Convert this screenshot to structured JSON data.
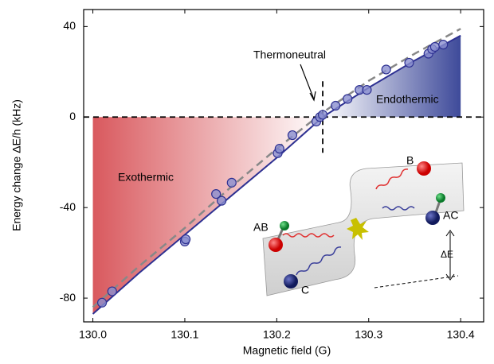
{
  "chart_data": {
    "type": "scatter",
    "xlabel": "Magnetic field (G)",
    "ylabel": "Energy change ΔE/h (kHz)",
    "xlim": [
      129.99,
      130.425
    ],
    "ylim": [
      -90.5,
      47.5
    ],
    "xticks": [
      {
        "value": 130.0,
        "label": "130.0"
      },
      130.1,
      130.2,
      130.3,
      130.4
    ],
    "yticks": [
      40,
      0,
      -40,
      -80
    ],
    "reference_lines": {
      "y": 0,
      "x": 130.25
    },
    "series": [
      {
        "type": "scatter",
        "color": "#2e3192",
        "x": [
          130.01,
          130.021,
          130.1,
          130.101,
          130.134,
          130.14,
          130.151,
          130.201,
          130.203,
          130.217,
          130.243,
          130.247,
          130.25,
          130.264,
          130.277,
          130.29,
          130.298,
          130.319,
          130.344,
          130.365,
          130.369,
          130.372,
          130.381
        ],
        "values": [
          -82,
          -77,
          -55,
          -54,
          -34,
          -37,
          -29,
          -16,
          -14,
          -8,
          -2,
          0,
          1,
          5,
          8,
          12,
          12,
          21,
          24,
          28,
          30,
          31,
          32
        ]
      },
      {
        "type": "line",
        "color": "#2e3192",
        "x": [
          130.0,
          130.05,
          130.1,
          130.15,
          130.2,
          130.25,
          130.3,
          130.35,
          130.4
        ],
        "values": [
          -87,
          -69,
          -52,
          -35,
          -18,
          0,
          13,
          25,
          36
        ]
      },
      {
        "type": "line",
        "dashed": true,
        "color": "#888888",
        "x": [
          130.0,
          130.05,
          130.1,
          130.15,
          130.2,
          130.25,
          130.3,
          130.35,
          130.4
        ],
        "values": [
          -84,
          -66,
          -49,
          -31,
          -14,
          2,
          16,
          28,
          39
        ]
      }
    ],
    "annotations": {
      "thermoneutral": "Thermoneutral",
      "endothermic": "Endothermic",
      "exothermic": "Exothermic"
    },
    "inset": {
      "b": "B",
      "ab": "AB",
      "ac": "AC",
      "c": "C",
      "delta_e": "ΔE"
    }
  }
}
